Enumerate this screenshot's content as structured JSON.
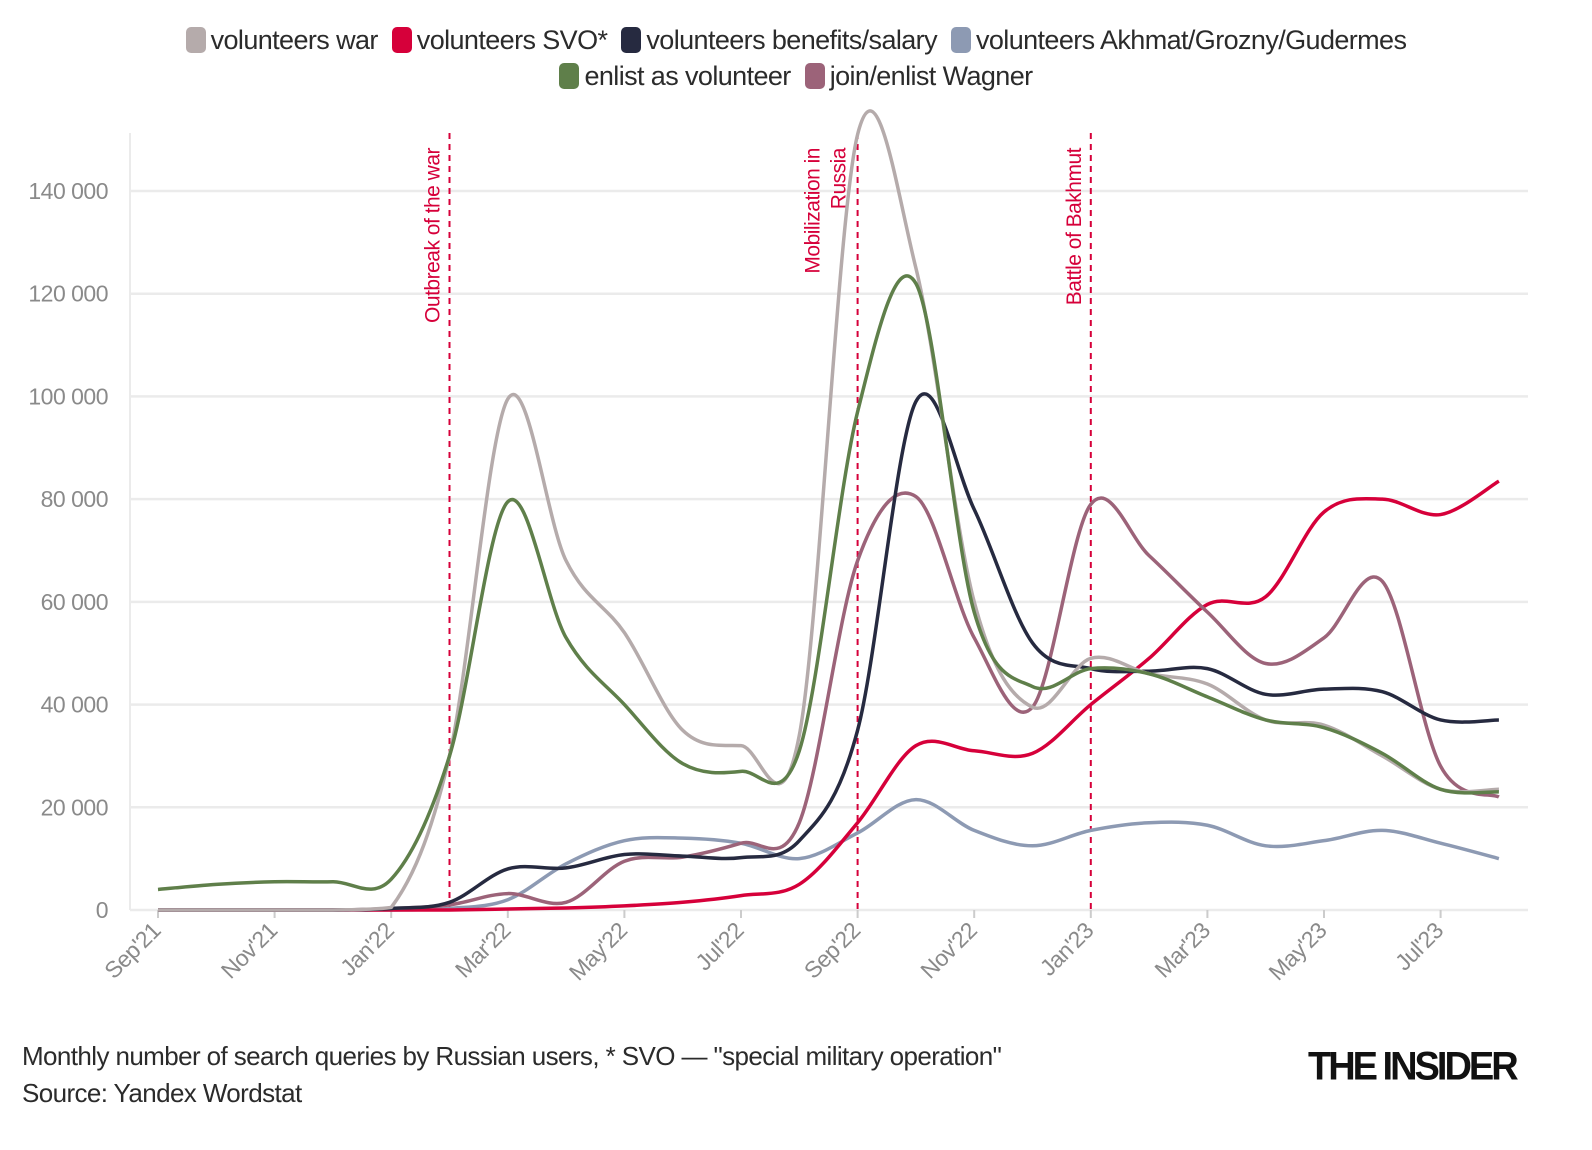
{
  "chart_data": {
    "type": "line",
    "title": "",
    "xlabel": "",
    "ylabel": "",
    "x": [
      "Sep'21",
      "Oct'21",
      "Nov'21",
      "Dec'21",
      "Jan'22",
      "Feb'22",
      "Mar'22",
      "Apr'22",
      "May'22",
      "Jun'22",
      "Jul'22",
      "Aug'22",
      "Sep'22",
      "Oct'22",
      "Nov'22",
      "Dec'22",
      "Jan'23",
      "Feb'23",
      "Mar'23",
      "Apr'23",
      "May'23",
      "Jun'23",
      "Jul'23",
      "Aug'23"
    ],
    "x_tick_labels": [
      "Sep'21",
      "Nov'21",
      "Jan'22",
      "Mar'22",
      "May'22",
      "Jul'22",
      "Sep'22",
      "Nov'22",
      "Jan'23",
      "Mar'23",
      "May'23",
      "Jul'23"
    ],
    "y_ticks": [
      0,
      20000,
      40000,
      60000,
      80000,
      100000,
      120000,
      140000
    ],
    "y_tick_labels": [
      "0",
      "20 000",
      "40 000",
      "60 000",
      "80 000",
      "100 000",
      "120 000",
      "140 000"
    ],
    "ylim": [
      0,
      150000
    ],
    "grid": true,
    "legend_position": "top",
    "series": [
      {
        "name": "volunteers war",
        "color": "#b5abab",
        "values": [
          0,
          0,
          0,
          0,
          500,
          30000,
          99500,
          68000,
          54000,
          35000,
          32000,
          34000,
          151000,
          125000,
          60000,
          39500,
          49000,
          46000,
          44000,
          37000,
          36000,
          30000,
          23500,
          23500
        ]
      },
      {
        "name": "volunteers SVO*",
        "color": "#d6003a",
        "values": [
          0,
          0,
          0,
          0,
          0,
          0,
          200,
          400,
          800,
          1500,
          2800,
          5000,
          17000,
          32000,
          31000,
          30500,
          40000,
          49000,
          59500,
          61000,
          77500,
          80000,
          77000,
          83500
        ]
      },
      {
        "name": "volunteers benefits/salary",
        "color": "#262a40",
        "values": [
          0,
          0,
          0,
          0,
          300,
          1500,
          8000,
          8200,
          10800,
          10500,
          10200,
          13500,
          35000,
          99000,
          78000,
          52000,
          47000,
          46500,
          47000,
          42000,
          43000,
          42500,
          37000,
          37000
        ]
      },
      {
        "name": "volunteers Akhmat/Grozny/Gudermes",
        "color": "#8d9ab3",
        "values": [
          0,
          0,
          0,
          0,
          0,
          300,
          2000,
          9000,
          13500,
          14000,
          13000,
          10000,
          15000,
          21500,
          15500,
          12500,
          15500,
          17000,
          16500,
          12500,
          13500,
          15500,
          13000,
          10000
        ]
      },
      {
        "name": "enlist as volunteer",
        "color": "#5f7f4a",
        "values": [
          4000,
          5000,
          5500,
          5500,
          6000,
          30000,
          79500,
          53000,
          40000,
          28500,
          27000,
          31000,
          97000,
          122000,
          58000,
          43500,
          47000,
          46000,
          41500,
          37000,
          35500,
          30500,
          23500,
          23000
        ]
      },
      {
        "name": "join/enlist Wagner",
        "color": "#9c6379",
        "values": [
          0,
          0,
          0,
          0,
          300,
          1000,
          3200,
          1500,
          9500,
          10300,
          13000,
          17000,
          68000,
          80500,
          53000,
          39500,
          79000,
          69000,
          58000,
          48000,
          53000,
          64000,
          28000,
          22000
        ]
      }
    ],
    "annotations": [
      {
        "x": "Feb'22",
        "lines": [
          "Outbreak of the war"
        ]
      },
      {
        "x": "Sep'22",
        "lines": [
          "Mobilization in",
          "Russia"
        ]
      },
      {
        "x": "Jan'23",
        "lines": [
          "Battle of Bakhmut"
        ]
      }
    ],
    "annotation_color": "#d6003a"
  },
  "caption": {
    "line1": "Monthly number of search queries by Russian users, * SVO — \"special military operation\"",
    "line2": "Source: Yandex Wordstat"
  },
  "logo": "THE INSIDER"
}
